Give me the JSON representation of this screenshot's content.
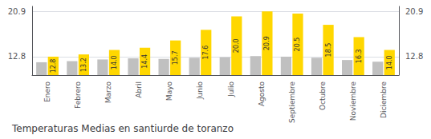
{
  "chart_data": {
    "type": "bar",
    "title": "Temperaturas Medias en santiurde de toranzo",
    "categories": [
      "Enero",
      "Febrero",
      "Marzo",
      "Abril",
      "Mayo",
      "Junio",
      "Julio",
      "Agosto",
      "Septiembre",
      "Octubre",
      "Noviembre",
      "Diciembre"
    ],
    "series": [
      {
        "color": "#C0C0C0",
        "values": [
          11.8,
          12.0,
          12.3,
          12.5,
          12.4,
          12.6,
          12.7,
          12.9,
          12.8,
          12.6,
          12.2,
          11.9
        ]
      },
      {
        "color": "#FFD700",
        "values": [
          12.8,
          13.2,
          14.0,
          14.4,
          15.7,
          17.6,
          20.0,
          20.9,
          20.5,
          18.5,
          16.3,
          14.0
        ],
        "data_labels": true,
        "value_labels": [
          "12.8",
          "13.2",
          "14.0",
          "14.4",
          "15.7",
          "17.6",
          "20.0",
          "20.9",
          "20.5",
          "18.5",
          "16.3",
          "14.0"
        ]
      }
    ],
    "ylim": [
      9.5,
      21.8
    ],
    "yticks": [
      12.8,
      20.9
    ],
    "y2lim": [
      9.5,
      21.8
    ],
    "y2ticks": [
      12.8,
      20.9
    ],
    "grid": true
  }
}
